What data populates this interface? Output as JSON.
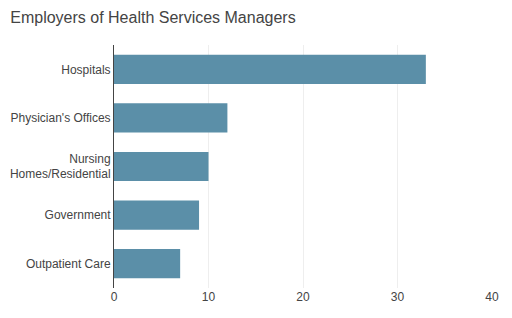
{
  "chart_data": {
    "type": "bar",
    "orientation": "horizontal",
    "title": "Employers of Health Services Managers",
    "categories": [
      "Outpatient Care",
      "Government",
      "Nursing\nHomes/Residential",
      "Physician's Offices",
      "Hospitals"
    ],
    "values": [
      7,
      9,
      10,
      12,
      33
    ],
    "color": "#5b8fa8",
    "xlim": [
      0,
      40
    ],
    "xticks": [
      0,
      10,
      20,
      30,
      40
    ],
    "grid": true
  }
}
